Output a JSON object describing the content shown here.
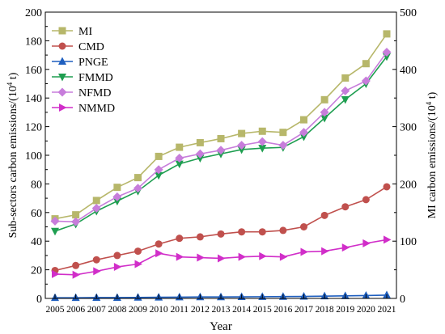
{
  "chart_data": {
    "type": "line",
    "title": "",
    "xlabel": "Year",
    "ylabel": "Sub-sectors carbon emissions/(10",
    "ylabel_sup": "4",
    "ylabel_end": " t)",
    "y2label": "MI carbon emissions/(10",
    "y2label_sup": "4",
    "y2label_end": " t)",
    "x": [
      2005,
      2006,
      2007,
      2008,
      2009,
      2010,
      2011,
      2012,
      2013,
      2014,
      2015,
      2016,
      2017,
      2018,
      2019,
      2020,
      2021
    ],
    "xticks": [
      "2005",
      "2006",
      "2007",
      "2008",
      "2009",
      "2010",
      "2011",
      "2012",
      "2013",
      "2014",
      "2015",
      "2016",
      "2017",
      "2018",
      "2019",
      "2020",
      "2021"
    ],
    "ylim": [
      0,
      200
    ],
    "yticks": [
      "0",
      "20",
      "40",
      "60",
      "80",
      "100",
      "120",
      "140",
      "160",
      "180",
      "200"
    ],
    "y2lim": [
      0,
      500
    ],
    "y2ticks": [
      "0",
      "100",
      "200",
      "300",
      "400",
      "500"
    ],
    "legend_position": "top-left",
    "series": [
      {
        "name": "MI",
        "axis": "right",
        "color": "#b7b76a",
        "marker": "square",
        "values": [
          139,
          146,
          171,
          194,
          211,
          248,
          264,
          272,
          279,
          288,
          292,
          290,
          312,
          347,
          385,
          410,
          462
        ]
      },
      {
        "name": "CMD",
        "axis": "left",
        "color": "#c0504d",
        "marker": "circle",
        "values": [
          19.5,
          23,
          27,
          30,
          33,
          38,
          42,
          43,
          45,
          46.5,
          46.5,
          47.5,
          50,
          58,
          64,
          69,
          78
        ]
      },
      {
        "name": "PNGE",
        "axis": "left",
        "color": "#1f5fbf",
        "marker": "triangle-up",
        "values": [
          0.5,
          0.5,
          0.6,
          0.6,
          0.7,
          0.8,
          0.9,
          1.0,
          1.0,
          1.1,
          1.2,
          1.3,
          1.4,
          1.6,
          1.8,
          2.0,
          2.3
        ]
      },
      {
        "name": "FMMD",
        "axis": "left",
        "color": "#1e9e50",
        "marker": "triangle-down",
        "values": [
          47,
          52,
          61,
          68,
          75,
          86,
          94,
          98,
          101,
          104,
          105,
          105.5,
          113,
          126,
          139,
          150,
          169
        ]
      },
      {
        "name": "NFMD",
        "axis": "left",
        "color": "#c77ddb",
        "marker": "diamond",
        "values": [
          54,
          53.5,
          63,
          71,
          77,
          90,
          98,
          101,
          103.5,
          107,
          109.5,
          107,
          116,
          130,
          145,
          152,
          172
        ]
      },
      {
        "name": "NMMD",
        "axis": "left",
        "color": "#d12ec9",
        "marker": "triangle-right",
        "values": [
          17,
          16.5,
          19,
          22,
          24,
          31.5,
          29,
          28.5,
          28,
          29,
          29.5,
          29,
          32.5,
          33,
          35.5,
          38.5,
          41
        ]
      }
    ]
  }
}
